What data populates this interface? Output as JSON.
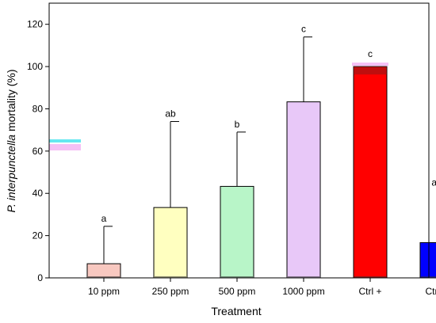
{
  "chart_data": {
    "type": "bar",
    "title": "",
    "xlabel": "Treatment",
    "ylabel_italic": "P. interpunctella",
    "ylabel_rest": " mortality (%)",
    "ylim": [
      0,
      130
    ],
    "yticks": [
      0,
      20,
      40,
      60,
      80,
      100,
      120
    ],
    "categories": [
      "10 ppm",
      "250 ppm",
      "500 ppm",
      "1000 ppm",
      "Ctrl +",
      "Ctrl −"
    ],
    "values": [
      6.7,
      33.3,
      43.3,
      83.3,
      100,
      16.7
    ],
    "error_upper": [
      17.7,
      40.7,
      25.7,
      30.7,
      0,
      24.7
    ],
    "significance": [
      "a",
      "ab",
      "b",
      "c",
      "c",
      "ab"
    ],
    "bar_colors": [
      "#F8C8C0",
      "#FFFFC0",
      "#B8F5C8",
      "#E8C8F8",
      "#FF0000",
      "#0000FF"
    ],
    "grid": false
  }
}
